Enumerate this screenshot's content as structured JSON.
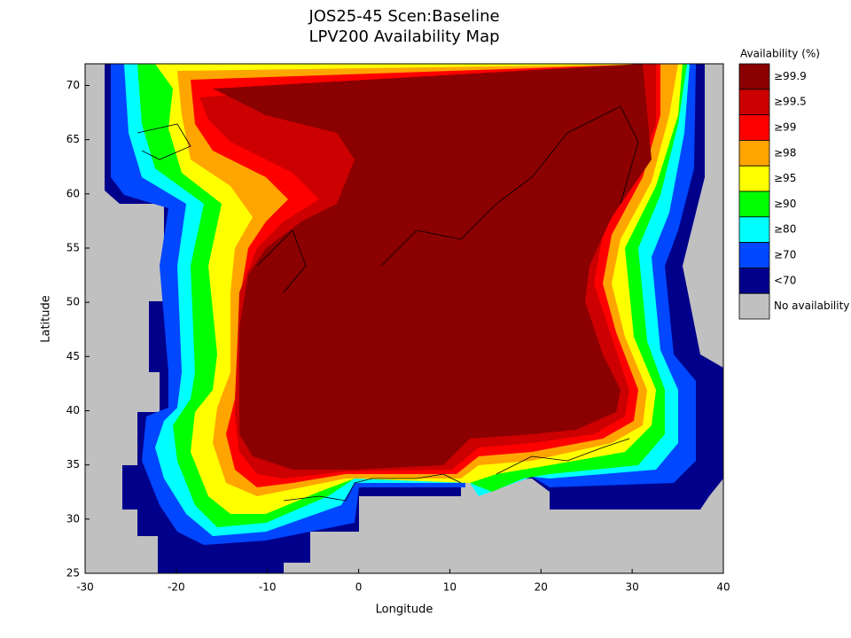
{
  "chart_data": {
    "type": "map",
    "title": "JOS25-45 Scen:Baseline",
    "subtitle": "LPV200 Availability Map",
    "x_label": "Longitude",
    "y_label": "Latitude",
    "xlim": [
      -30,
      40
    ],
    "xticks": [
      -30,
      -20,
      -10,
      0,
      10,
      20,
      30,
      40
    ],
    "ylim": [
      25,
      72
    ],
    "yticks": [
      25,
      30,
      35,
      40,
      45,
      50,
      55,
      60,
      65,
      70
    ],
    "legend": {
      "title": "Availability (%)",
      "items": [
        {
          "label": "≥99.9",
          "color": "#8b0000"
        },
        {
          "label": "≥99.5",
          "color": "#cc0000"
        },
        {
          "label": "≥99",
          "color": "#ff0000"
        },
        {
          "label": "≥98",
          "color": "#ffa500"
        },
        {
          "label": "≥95",
          "color": "#ffff00"
        },
        {
          "label": "≥90",
          "color": "#00ff00"
        },
        {
          "label": "≥80",
          "color": "#00ffff"
        },
        {
          "label": "≥70",
          "color": "#0047ff"
        },
        {
          "label": "<70",
          "color": "#00008b"
        },
        {
          "label": "No availability",
          "color": "#c0c0c0"
        }
      ]
    }
  }
}
